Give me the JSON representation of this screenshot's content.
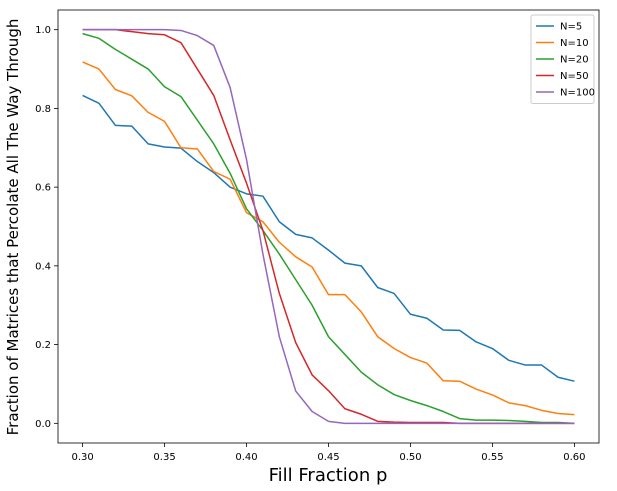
{
  "chart_data": {
    "type": "line",
    "xlabel": "Fill Fraction p",
    "ylabel": "Fraction of Matrices that Percolate All The Way Through",
    "xlim": [
      0.285,
      0.615
    ],
    "ylim": [
      -0.05,
      1.05
    ],
    "xticks": [
      0.3,
      0.35,
      0.4,
      0.45,
      0.5,
      0.55,
      0.6
    ],
    "xtick_labels": [
      "0.30",
      "0.35",
      "0.40",
      "0.45",
      "0.50",
      "0.55",
      "0.60"
    ],
    "yticks": [
      0.0,
      0.2,
      0.4,
      0.6,
      0.8,
      1.0
    ],
    "ytick_labels": [
      "0.0",
      "0.2",
      "0.4",
      "0.6",
      "0.8",
      "1.0"
    ],
    "grid": false,
    "legend_position": "top-right",
    "x": [
      0.3,
      0.31,
      0.32,
      0.33,
      0.34,
      0.35,
      0.36,
      0.37,
      0.38,
      0.39,
      0.4,
      0.41,
      0.42,
      0.43,
      0.44,
      0.45,
      0.46,
      0.47,
      0.48,
      0.49,
      0.5,
      0.51,
      0.52,
      0.53,
      0.54,
      0.55,
      0.56,
      0.57,
      0.58,
      0.59,
      0.6
    ],
    "series": [
      {
        "name": "N=5",
        "color": "#1f77b4",
        "values": [
          0.833,
          0.813,
          0.757,
          0.755,
          0.71,
          0.702,
          0.699,
          0.665,
          0.637,
          0.6,
          0.583,
          0.577,
          0.512,
          0.48,
          0.471,
          0.44,
          0.407,
          0.4,
          0.345,
          0.33,
          0.277,
          0.267,
          0.237,
          0.236,
          0.207,
          0.19,
          0.16,
          0.148,
          0.148,
          0.117,
          0.107
        ]
      },
      {
        "name": "N=10",
        "color": "#ff7f0e",
        "values": [
          0.918,
          0.9,
          0.848,
          0.832,
          0.79,
          0.767,
          0.7,
          0.697,
          0.64,
          0.62,
          0.535,
          0.512,
          0.46,
          0.423,
          0.397,
          0.327,
          0.327,
          0.283,
          0.22,
          0.19,
          0.167,
          0.153,
          0.108,
          0.107,
          0.087,
          0.072,
          0.052,
          0.045,
          0.033,
          0.025,
          0.022
        ]
      },
      {
        "name": "N=20",
        "color": "#2ca02c",
        "values": [
          0.99,
          0.978,
          0.95,
          0.925,
          0.9,
          0.855,
          0.83,
          0.77,
          0.71,
          0.635,
          0.545,
          0.49,
          0.43,
          0.365,
          0.3,
          0.22,
          0.175,
          0.13,
          0.098,
          0.073,
          0.058,
          0.045,
          0.03,
          0.012,
          0.008,
          0.008,
          0.007,
          0.005,
          0.002,
          0.002,
          0.0
        ]
      },
      {
        "name": "N=50",
        "color": "#d62728",
        "values": [
          1.0,
          1.0,
          1.0,
          0.995,
          0.99,
          0.987,
          0.967,
          0.9,
          0.833,
          0.72,
          0.61,
          0.49,
          0.33,
          0.205,
          0.123,
          0.083,
          0.037,
          0.023,
          0.005,
          0.003,
          0.002,
          0.002,
          0.002,
          0.0,
          0.0,
          0.0,
          0.0,
          0.0,
          0.0,
          0.0,
          0.0
        ]
      },
      {
        "name": "N=100",
        "color": "#9467bd",
        "values": [
          1.0,
          1.0,
          1.0,
          1.0,
          1.0,
          1.0,
          0.998,
          0.985,
          0.96,
          0.853,
          0.67,
          0.43,
          0.22,
          0.082,
          0.03,
          0.005,
          0.0,
          0.0,
          0.0,
          0.0,
          0.0,
          0.0,
          0.0,
          0.0,
          0.0,
          0.0,
          0.0,
          0.0,
          0.0,
          0.0,
          0.0
        ]
      }
    ]
  }
}
